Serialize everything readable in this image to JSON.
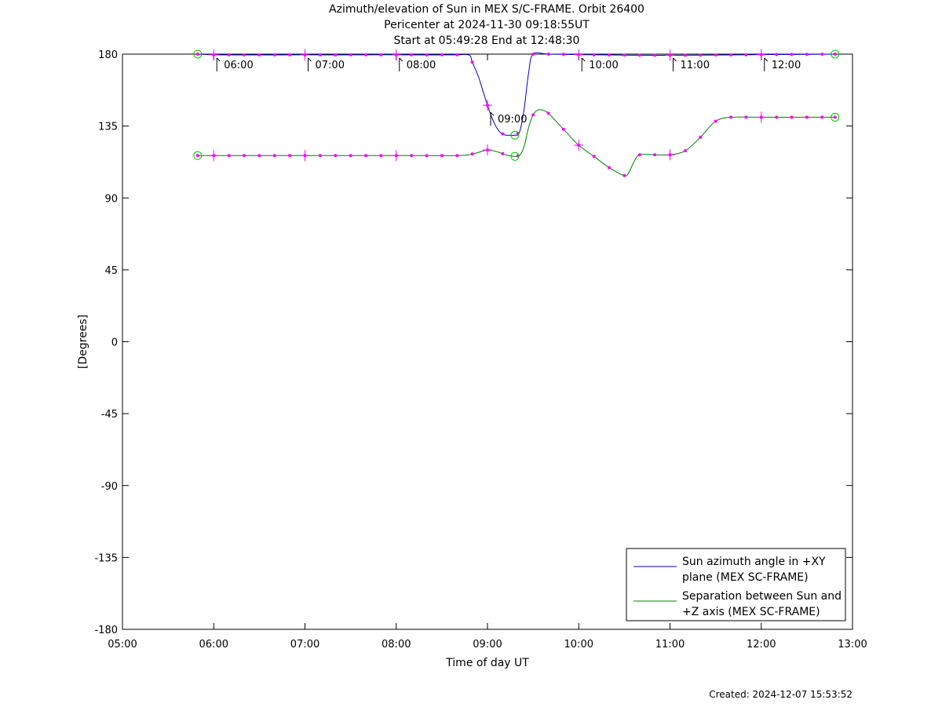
{
  "chart_data": {
    "type": "line",
    "title": [
      "Azimuth/elevation of Sun in MEX S/C-FRAME.  Orbit 26400",
      "Pericenter at 2024-11-30 09:18:55UT",
      "Start at 05:49:28 End at 12:48:30"
    ],
    "xlabel": "Time of day UT",
    "ylabel": "[Degrees]",
    "xlim": [
      5.0,
      13.0
    ],
    "ylim": [
      -180,
      180
    ],
    "x_ticks": [
      5,
      6,
      7,
      8,
      9,
      10,
      11,
      12,
      13
    ],
    "x_tick_labels": [
      "05:00",
      "06:00",
      "07:00",
      "08:00",
      "09:00",
      "10:00",
      "11:00",
      "12:00",
      "13:00"
    ],
    "y_ticks": [
      180,
      135,
      90,
      45,
      0,
      -45,
      -90,
      -135,
      -180
    ],
    "y_tick_labels": [
      "180",
      "135",
      "90",
      "45",
      "0",
      "-45",
      "-90",
      "-135",
      "-180"
    ],
    "grid": false,
    "legend_position": "bottom-right",
    "annotations": {
      "hour_labels": [
        {
          "label": "06:00",
          "x": 6.0,
          "y": 180
        },
        {
          "label": "07:00",
          "x": 7.0,
          "y": 180
        },
        {
          "label": "08:00",
          "x": 8.0,
          "y": 180
        },
        {
          "label": "09:00",
          "x": 9.0,
          "y": 146
        },
        {
          "label": "10:00",
          "x": 10.0,
          "y": 180
        },
        {
          "label": "11:00",
          "x": 11.0,
          "y": 180
        },
        {
          "label": "12:00",
          "x": 12.0,
          "y": 180
        }
      ]
    },
    "series": [
      {
        "name": "Sun azimuth angle in +XY plane (MEX SC-FRAME)",
        "legend_lines": [
          "Sun azimuth angle in +XY",
          "plane (MEX SC-FRAME)"
        ],
        "color": "#0000cc",
        "x": [
          5.824,
          6.0,
          6.333,
          6.667,
          7.0,
          7.333,
          7.667,
          8.0,
          8.333,
          8.667,
          8.8,
          8.833,
          8.9,
          8.95,
          9.0,
          9.05,
          9.1,
          9.15,
          9.2,
          9.25,
          9.3,
          9.35,
          9.4,
          9.45,
          9.5,
          9.667,
          10.0,
          10.333,
          10.667,
          11.0,
          11.333,
          11.667,
          12.0,
          12.333,
          12.808
        ],
        "y": [
          180,
          179.6,
          179.5,
          179.5,
          179.6,
          179.5,
          179.6,
          179.6,
          179.5,
          179.6,
          179.4,
          175,
          166,
          157,
          148,
          140,
          134,
          130.5,
          129.3,
          129.3,
          129.3,
          131,
          145,
          168,
          180,
          180,
          179.7,
          179.5,
          179.3,
          179.3,
          179.4,
          179.5,
          179.7,
          179.8,
          180
        ]
      },
      {
        "name": "Separation between Sun and +Z axis (MEX SC-FRAME)",
        "legend_lines": [
          "Separation between Sun and",
          "+Z axis (MEX SC-FRAME)"
        ],
        "color": "#008000",
        "x": [
          5.824,
          6.0,
          6.333,
          6.667,
          7.0,
          7.333,
          7.667,
          8.0,
          8.333,
          8.667,
          8.8,
          8.9,
          9.0,
          9.1,
          9.2,
          9.3,
          9.35,
          9.4,
          9.45,
          9.5,
          9.55,
          9.6,
          9.667,
          9.833,
          10.0,
          10.167,
          10.333,
          10.5,
          10.55,
          10.6,
          10.667,
          10.833,
          11.0,
          11.167,
          11.333,
          11.5,
          11.667,
          12.0,
          12.333,
          12.808
        ],
        "y": [
          116.5,
          116.5,
          116.5,
          116.5,
          116.5,
          116.5,
          116.5,
          116.5,
          116.5,
          116.5,
          117,
          118.5,
          120,
          119,
          117,
          116,
          116.5,
          122,
          134,
          142,
          145,
          145,
          143,
          133,
          123,
          116,
          109,
          104,
          106,
          112,
          117,
          117,
          117,
          119.5,
          128,
          138,
          140.5,
          140.5,
          140.5,
          140.5
        ]
      }
    ],
    "markers": {
      "dot_times": [
        5.824,
        6.0,
        6.167,
        6.333,
        6.5,
        6.667,
        6.833,
        7.0,
        7.167,
        7.333,
        7.5,
        7.667,
        7.833,
        8.0,
        8.167,
        8.333,
        8.5,
        8.667,
        8.833,
        9.0,
        9.167,
        9.333,
        9.5,
        9.667,
        9.833,
        10.0,
        10.167,
        10.333,
        10.5,
        10.667,
        10.833,
        11.0,
        11.167,
        11.333,
        11.5,
        11.667,
        11.833,
        12.0,
        12.167,
        12.333,
        12.5,
        12.667,
        12.808
      ],
      "hour_plus_times": [
        6,
        7,
        8,
        9,
        10,
        11,
        12
      ],
      "circle_times": [
        5.824,
        9.3,
        12.808
      ],
      "color": "#ff00ff",
      "circle_color": "#00cc00"
    },
    "created": "Created: 2024-12-07 15:53:52"
  }
}
